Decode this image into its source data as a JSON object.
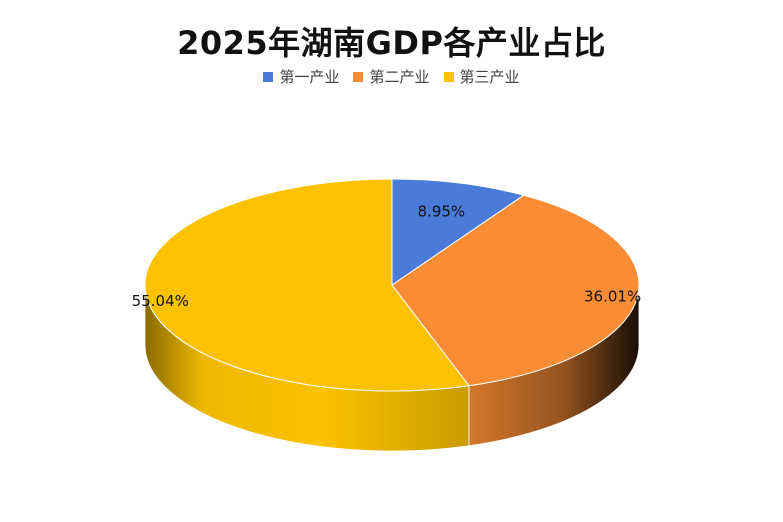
{
  "chart_data": {
    "type": "pie",
    "title": "2025年湖南GDP各产业占比",
    "categories": [
      "第一产业",
      "第二产业",
      "第三产业"
    ],
    "values": [
      8.95,
      36.01,
      55.04
    ],
    "labels": [
      "8.95%",
      "36.01%",
      "55.04%"
    ],
    "colors": [
      "#4A7BD8",
      "#F98C34",
      "#FCC200"
    ],
    "legend_position": "top",
    "style": "3d"
  }
}
